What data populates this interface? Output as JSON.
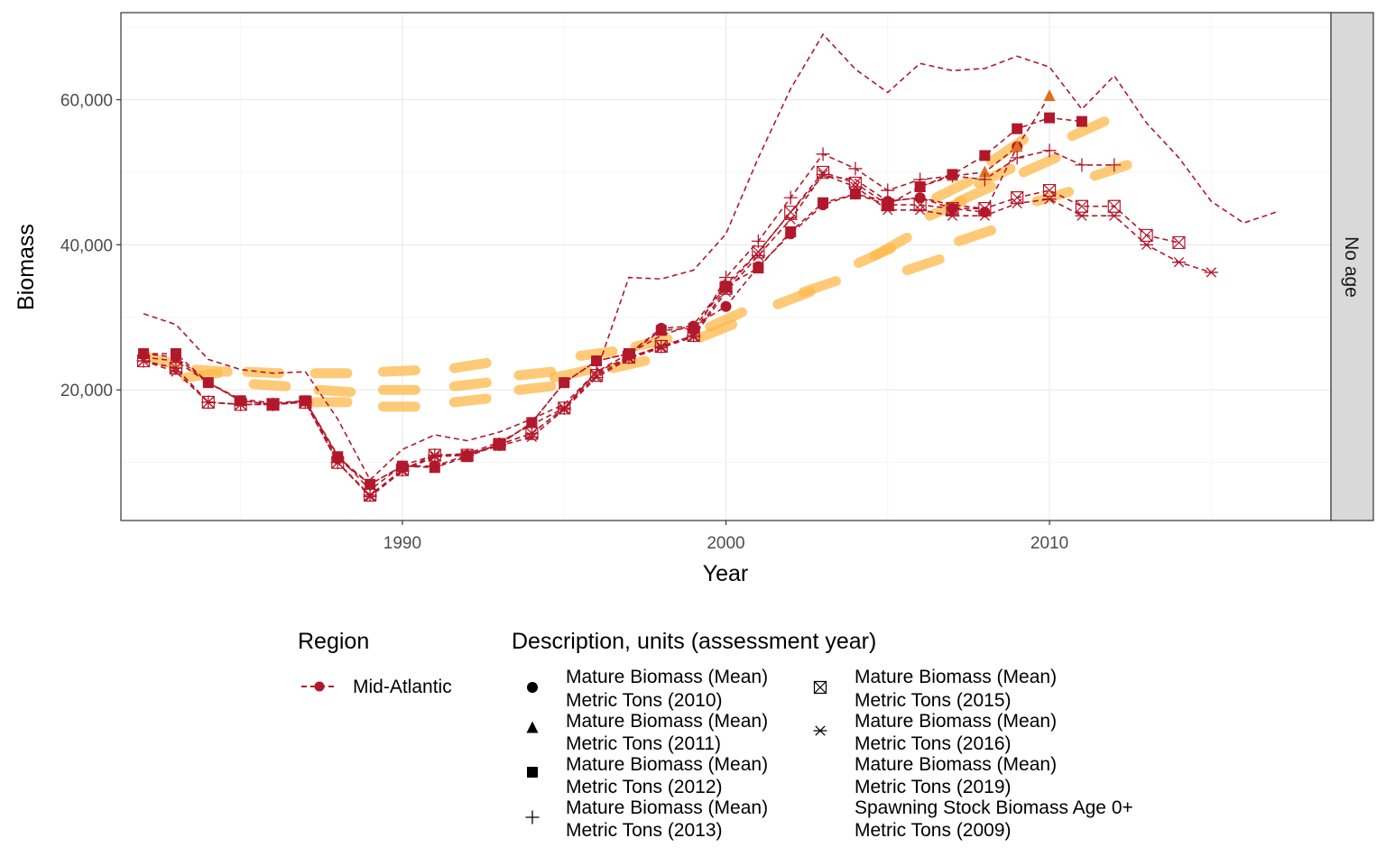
{
  "chart_data": {
    "type": "line",
    "facet_label": "No age",
    "xlabel": "Year",
    "ylabel": "Biomass",
    "xlim": [
      1981.3,
      2018.7
    ],
    "ylim": [
      2000,
      72000
    ],
    "x_ticks": [
      1990,
      2000,
      2010
    ],
    "x_tick_labels": [
      "1990",
      "2000",
      "2010"
    ],
    "y_ticks": [
      20000,
      40000,
      60000
    ],
    "y_tick_labels": [
      "20,000",
      "40,000",
      "60,000"
    ],
    "grid": true,
    "legend_position": "bottom",
    "region_legend": {
      "title": "Region",
      "entries": [
        "Mid-Atlantic"
      ]
    },
    "description_legend": {
      "title": "Description, units (assessment year)",
      "entries": [
        {
          "line1": "Mature Biomass (Mean)",
          "line2": "Metric Tons (2010)",
          "shape": "circle"
        },
        {
          "line1": "Mature Biomass (Mean)",
          "line2": "Metric Tons (2011)",
          "shape": "triangle"
        },
        {
          "line1": "Mature Biomass (Mean)",
          "line2": "Metric Tons (2012)",
          "shape": "square"
        },
        {
          "line1": "Mature Biomass (Mean)",
          "line2": "Metric Tons (2013)",
          "shape": "plus"
        },
        {
          "line1": "Mature Biomass (Mean)",
          "line2": "Metric Tons (2015)",
          "shape": "square-cross"
        },
        {
          "line1": "Mature Biomass (Mean)",
          "line2": "Metric Tons (2016)",
          "shape": "asterisk"
        },
        {
          "line1": "Mature Biomass (Mean)",
          "line2": "Metric Tons (2019)",
          "shape": "none"
        },
        {
          "line1": "Spawning Stock Biomass Age 0+",
          "line2": "Metric Tons (2009)",
          "shape": "none"
        }
      ]
    },
    "colors": {
      "series": "#B2182B",
      "trend": "#FDB84A",
      "trend_marker": "#E0701E",
      "strip": "#D9D9D9"
    },
    "series": [
      {
        "assessment": "2019",
        "shape": "none",
        "x": [
          1982,
          1983,
          1984,
          1985,
          1986,
          1987,
          1988,
          1989,
          1990,
          1991,
          1992,
          1993,
          1994,
          1995,
          1996,
          1997,
          1998,
          1999,
          2000,
          2001,
          2002,
          2003,
          2004,
          2005,
          2006,
          2007,
          2008,
          2009,
          2010,
          2011,
          2012,
          2013,
          2014,
          2015,
          2016,
          2017
        ],
        "y": [
          30500,
          29000,
          24200,
          22800,
          22300,
          22500,
          16000,
          7600,
          11800,
          13800,
          13000,
          14200,
          16000,
          18000,
          22500,
          35500,
          35300,
          36500,
          41500,
          52000,
          61500,
          69000,
          64200,
          61000,
          65000,
          64000,
          64300,
          66000,
          64500,
          58700,
          63300,
          56800,
          52000,
          46000,
          43000,
          44500
        ]
      },
      {
        "assessment": "2009",
        "shape": "none",
        "x": [
          1982,
          1983,
          1984,
          1985,
          1986,
          1987,
          1988,
          1989,
          1990,
          1991,
          1992,
          1993,
          1994,
          1995,
          1996,
          1997,
          1998,
          1999,
          2000,
          2001,
          2002,
          2003,
          2004,
          2005,
          2006,
          2007,
          2008
        ],
        "y": [
          24500,
          24000,
          21000,
          18700,
          18200,
          18500,
          11000,
          6200,
          9600,
          11000,
          11200,
          12800,
          15200,
          17500,
          22500,
          25000,
          27500,
          29000,
          34500,
          39000,
          44500,
          49500,
          49000,
          46000,
          46500,
          45500,
          45000
        ]
      },
      {
        "assessment": "2010",
        "shape": "circle",
        "x": [
          1982,
          1983,
          1984,
          1985,
          1986,
          1987,
          1988,
          1989,
          1990,
          1991,
          1992,
          1993,
          1994,
          1995,
          1996,
          1997,
          1998,
          1999,
          2000,
          2001,
          2002,
          2003,
          2004,
          2005,
          2006,
          2007,
          2008,
          2009
        ],
        "y": [
          25000,
          24500,
          21000,
          18500,
          18000,
          18500,
          10500,
          7000,
          9500,
          9500,
          11000,
          12500,
          15500,
          21000,
          24000,
          25000,
          28500,
          28800,
          31500,
          37000,
          41500,
          45500,
          47000,
          46000,
          46500,
          45000,
          44500,
          53500
        ]
      },
      {
        "assessment": "2011",
        "shape": "triangle",
        "x": [
          2006,
          2007,
          2008,
          2009,
          2010
        ],
        "y": [
          48000,
          49500,
          50000,
          53500,
          60500
        ]
      },
      {
        "assessment": "2012",
        "shape": "square",
        "x": [
          1982,
          1983,
          1984,
          1985,
          1986,
          1987,
          1988,
          1989,
          1990,
          1991,
          1992,
          1993,
          1994,
          1995,
          1996,
          1997,
          1998,
          1999,
          2000,
          2001,
          2002,
          2003,
          2004,
          2005,
          2006,
          2007,
          2008,
          2009,
          2010,
          2011
        ],
        "y": [
          25000,
          25000,
          21000,
          18500,
          18000,
          18500,
          10800,
          7000,
          9500,
          9300,
          10800,
          12500,
          15500,
          21000,
          24000,
          25000,
          28200,
          28500,
          34300,
          36800,
          41800,
          45800,
          47000,
          45500,
          48000,
          49700,
          52300,
          56000,
          57500,
          57000
        ]
      },
      {
        "assessment": "2013",
        "shape": "plus",
        "x": [
          1982,
          1983,
          1984,
          1985,
          1986,
          1987,
          1988,
          1989,
          1990,
          1991,
          1992,
          1993,
          1994,
          1995,
          1996,
          1997,
          1998,
          1999,
          2000,
          2001,
          2002,
          2003,
          2004,
          2005,
          2006,
          2007,
          2008,
          2009,
          2010,
          2011,
          2012
        ],
        "y": [
          24000,
          23000,
          18300,
          18000,
          18000,
          18300,
          10000,
          5500,
          9000,
          11000,
          11000,
          12500,
          14000,
          17500,
          22500,
          24500,
          26000,
          27500,
          35500,
          40500,
          46500,
          52500,
          50500,
          47500,
          49000,
          49500,
          49000,
          52000,
          53000,
          51000,
          51000
        ]
      },
      {
        "assessment": "2015",
        "shape": "square-cross",
        "x": [
          1982,
          1983,
          1984,
          1985,
          1986,
          1987,
          1988,
          1989,
          1990,
          1991,
          1992,
          1993,
          1994,
          1995,
          1996,
          1997,
          1998,
          1999,
          2000,
          2001,
          2002,
          2003,
          2004,
          2005,
          2006,
          2007,
          2008,
          2009,
          2010,
          2011,
          2012,
          2013,
          2014
        ],
        "y": [
          24000,
          23000,
          18300,
          18000,
          18000,
          18300,
          10000,
          5500,
          9000,
          11000,
          11000,
          12500,
          14000,
          17500,
          22000,
          24500,
          26000,
          27500,
          34000,
          39000,
          44500,
          50000,
          48500,
          45500,
          45500,
          45000,
          45000,
          46500,
          47500,
          45300,
          45300,
          41300,
          40300
        ]
      },
      {
        "assessment": "2016",
        "shape": "asterisk",
        "x": [
          1982,
          1983,
          1984,
          1985,
          1986,
          1987,
          1988,
          1989,
          1990,
          1991,
          1992,
          1993,
          1994,
          1995,
          1996,
          1997,
          1998,
          1999,
          2000,
          2001,
          2002,
          2003,
          2004,
          2005,
          2006,
          2007,
          2008,
          2009,
          2010,
          2011,
          2012,
          2013,
          2014,
          2015
        ],
        "y": [
          24000,
          22500,
          18300,
          18000,
          18000,
          18300,
          10000,
          5300,
          8800,
          10800,
          11000,
          12300,
          13500,
          17300,
          21700,
          24300,
          25800,
          27300,
          33500,
          38500,
          43500,
          49700,
          48000,
          44800,
          44800,
          44000,
          44000,
          45700,
          46300,
          44000,
          44000,
          40000,
          37600,
          36200
        ]
      }
    ],
    "trend_segments": [
      {
        "x": [
          1982.0,
          1983.0
        ],
        "y": [
          24700,
          23500
        ]
      },
      {
        "x": [
          1983.6,
          1984.6
        ],
        "y": [
          22800,
          22500
        ]
      },
      {
        "x": [
          1985.4,
          1986.4
        ],
        "y": [
          20800,
          20500
        ]
      },
      {
        "x": [
          1987.4,
          1988.4
        ],
        "y": [
          20000,
          19700
        ]
      },
      {
        "x": [
          1989.4,
          1990.4
        ],
        "y": [
          20000,
          20000
        ]
      },
      {
        "x": [
          1991.6,
          1992.6
        ],
        "y": [
          20500,
          21000
        ]
      },
      {
        "x": [
          1993.6,
          1994.6
        ],
        "y": [
          22000,
          22500
        ]
      },
      {
        "x": [
          1995.5,
          1996.5
        ],
        "y": [
          24700,
          25300
        ]
      },
      {
        "x": [
          1983.3,
          1984.3
        ],
        "y": [
          21700,
          22300
        ]
      },
      {
        "x": [
          1985.2,
          1986.2
        ],
        "y": [
          22500,
          22300
        ]
      },
      {
        "x": [
          1987.3,
          1988.3
        ],
        "y": [
          22300,
          22300
        ]
      },
      {
        "x": [
          1989.4,
          1990.4
        ],
        "y": [
          22500,
          22700
        ]
      },
      {
        "x": [
          1991.6,
          1992.6
        ],
        "y": [
          23000,
          23700
        ]
      },
      {
        "x": [
          1987.3,
          1988.3
        ],
        "y": [
          18300,
          18300
        ]
      },
      {
        "x": [
          1989.4,
          1990.4
        ],
        "y": [
          17700,
          17700
        ]
      },
      {
        "x": [
          1991.6,
          1992.6
        ],
        "y": [
          18300,
          18800
        ]
      },
      {
        "x": [
          1993.6,
          1994.6
        ],
        "y": [
          20000,
          20500
        ]
      },
      {
        "x": [
          1994.7,
          1995.7
        ],
        "y": [
          21700,
          22700
        ]
      },
      {
        "x": [
          1996.5,
          1997.5
        ],
        "y": [
          23000,
          24000
        ]
      },
      {
        "x": [
          1997.2,
          1998.2
        ],
        "y": [
          26000,
          27000
        ]
      },
      {
        "x": [
          1999.2,
          2000.2
        ],
        "y": [
          27200,
          29000
        ]
      },
      {
        "x": [
          1999.5,
          2000.5
        ],
        "y": [
          28700,
          30700
        ]
      },
      {
        "x": [
          2001.6,
          2002.6
        ],
        "y": [
          31800,
          33500
        ]
      },
      {
        "x": [
          2002.4,
          2003.4
        ],
        "y": [
          33500,
          35000
        ]
      },
      {
        "x": [
          2004.1,
          2005.1
        ],
        "y": [
          37500,
          39500
        ]
      },
      {
        "x": [
          2004.6,
          2005.6
        ],
        "y": [
          38500,
          41000
        ]
      },
      {
        "x": [
          2005.6,
          2006.6
        ],
        "y": [
          36500,
          38000
        ]
      },
      {
        "x": [
          2007.2,
          2008.2
        ],
        "y": [
          40500,
          42000
        ]
      },
      {
        "x": [
          2006.3,
          2007.3
        ],
        "y": [
          44000,
          46000
        ]
      },
      {
        "x": [
          2006.5,
          2007.5
        ],
        "y": [
          46500,
          48700
        ]
      },
      {
        "x": [
          2007.2,
          2008.2
        ],
        "y": [
          46000,
          48000
        ]
      },
      {
        "x": [
          2007.8,
          2008.8
        ],
        "y": [
          48500,
          50500
        ]
      },
      {
        "x": [
          2008.2,
          2009.2
        ],
        "y": [
          51500,
          54500
        ]
      },
      {
        "x": [
          2009.6,
          2010.6
        ],
        "y": [
          46000,
          47300
        ]
      },
      {
        "x": [
          2009.2,
          2010.2
        ],
        "y": [
          50000,
          52000
        ]
      },
      {
        "x": [
          2010.7,
          2011.7
        ],
        "y": [
          55000,
          57000
        ]
      },
      {
        "x": [
          2011.4,
          2012.4
        ],
        "y": [
          49500,
          51000
        ]
      }
    ]
  }
}
